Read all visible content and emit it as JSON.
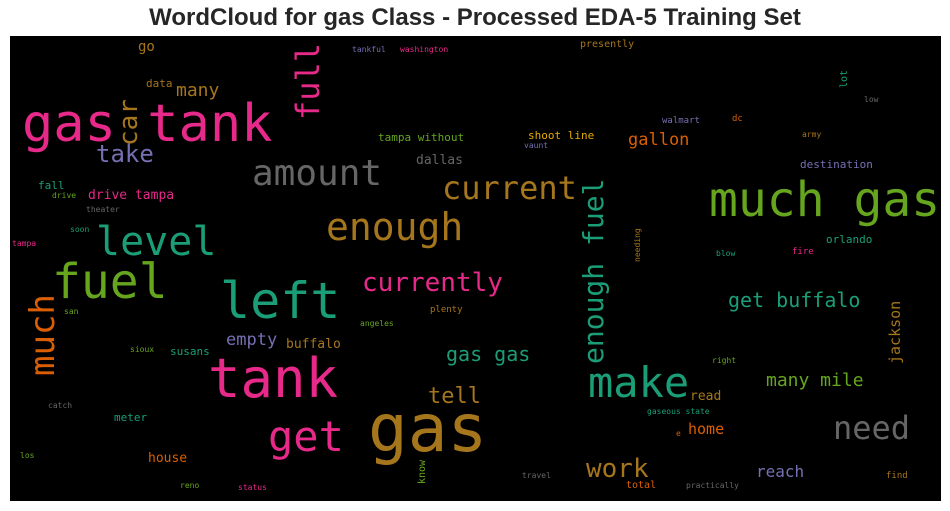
{
  "title": "WordCloud for gas Class - Processed EDA-5 Training Set",
  "colors": {
    "pink": "#e7298a",
    "green": "#66a61e",
    "teal": "#1b9e77",
    "gold": "#a6761d",
    "gray": "#666666",
    "orange": "#d95f02",
    "purple": "#7570b3",
    "yellow": "#e6ab02"
  },
  "words": {
    "gas": "gas",
    "much_gas": "much gas",
    "gas_tank": "gas tank",
    "tank": "tank",
    "left": "left",
    "fuel": "fuel",
    "make": "make",
    "get": "get",
    "need": "need",
    "enough": "enough",
    "current": "current",
    "amount": "amount",
    "level": "level",
    "much": "much",
    "full": "full",
    "car": "car",
    "take": "take",
    "enough_fuel": "enough fuel",
    "currently": "currently",
    "work": "work",
    "get_buffalo": "get buffalo",
    "gas_gas": "gas gas",
    "tell": "tell",
    "many_mile": "many mile",
    "empty": "empty",
    "gallon": "gallon",
    "many": "many",
    "reach": "reach",
    "jackson": "jackson",
    "home": "home",
    "house": "house",
    "read": "read",
    "drive_tampa": "drive tampa",
    "buffalo": "buffalo",
    "go": "go",
    "dallas": "dallas",
    "tampa_without": "tampa without",
    "shoot_line": "shoot line",
    "destination": "destination",
    "orlando": "orlando",
    "fall": "fall",
    "data": "data",
    "susans": "susans",
    "meter": "meter",
    "presently": "presently",
    "lot": "lot",
    "know": "know",
    "total": "total",
    "walmart": "walmart",
    "dc": "dc",
    "vaunt": "vaunt",
    "army": "army",
    "low": "low",
    "fire": "fire",
    "blow": "blow",
    "needing": "needing",
    "plenty": "plenty",
    "angeles": "angeles",
    "sioux": "sioux",
    "san": "san",
    "right": "right",
    "gaseous_state": "gaseous state",
    "e": "e",
    "find": "find",
    "practically": "practically",
    "travel": "travel",
    "status": "status",
    "reno": "reno",
    "los": "los",
    "catch": "catch",
    "tankful": "tankful",
    "washington": "washington",
    "drive": "drive",
    "theater": "theater",
    "soon": "soon",
    "tampa": "tampa"
  }
}
